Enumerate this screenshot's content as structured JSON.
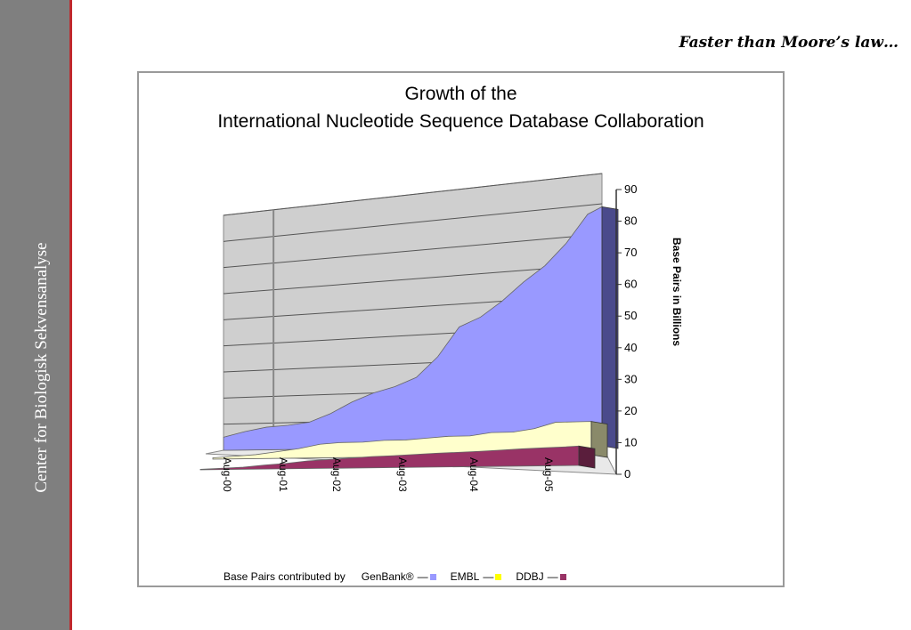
{
  "sidebar": {
    "text": "Center for Biologisk Sekvensanalyse"
  },
  "slide": {
    "title": "Faster than Moore’s law…"
  },
  "colors": {
    "sidebar_bg": "#7f7f7f",
    "sidebar_line": "#c0282d",
    "genbank": "#9999ff",
    "embl": "#ffffcc",
    "ddbj": "#993366"
  },
  "chart_data": {
    "type": "area",
    "title": "Growth of the",
    "subtitle": "International Nucleotide Sequence Database Collaboration",
    "ylabel": "Base Pairs in Billions",
    "ylim": [
      0,
      90
    ],
    "yticks": [
      0,
      10,
      20,
      30,
      40,
      50,
      60,
      70,
      80,
      90
    ],
    "xticks": [
      "Aug-00",
      "Aug-01",
      "Aug-02",
      "Aug-03",
      "Aug-04",
      "Aug-05"
    ],
    "x": [
      2000.6,
      2000.9,
      2001.2,
      2001.5,
      2001.8,
      2002.1,
      2002.4,
      2002.7,
      2003.0,
      2003.3,
      2003.6,
      2003.9,
      2004.2,
      2004.5,
      2004.8,
      2005.1,
      2005.4,
      2005.7,
      2005.9
    ],
    "series": [
      {
        "name": "GenBank®",
        "values": [
          5,
          7,
          8.5,
          9,
          10,
          13,
          17,
          20,
          22,
          25,
          32,
          42,
          45,
          50,
          56,
          61,
          68,
          77,
          79
        ]
      },
      {
        "name": "EMBL",
        "values": [
          0.5,
          1,
          1.5,
          2.5,
          3.5,
          5,
          5.5,
          5.5,
          6,
          6,
          6.5,
          7,
          7,
          8,
          8,
          9,
          11,
          11,
          11
        ]
      },
      {
        "name": "DDBJ",
        "values": [
          0.2,
          0.5,
          0.8,
          1.5,
          2,
          2.8,
          3.2,
          3.6,
          4,
          4.2,
          4.5,
          4.8,
          5,
          5.2,
          5.5,
          5.8,
          6,
          6.2,
          6.4
        ]
      }
    ],
    "legend": {
      "prefix": "Base Pairs  contributed by",
      "placement": "bottom"
    }
  }
}
